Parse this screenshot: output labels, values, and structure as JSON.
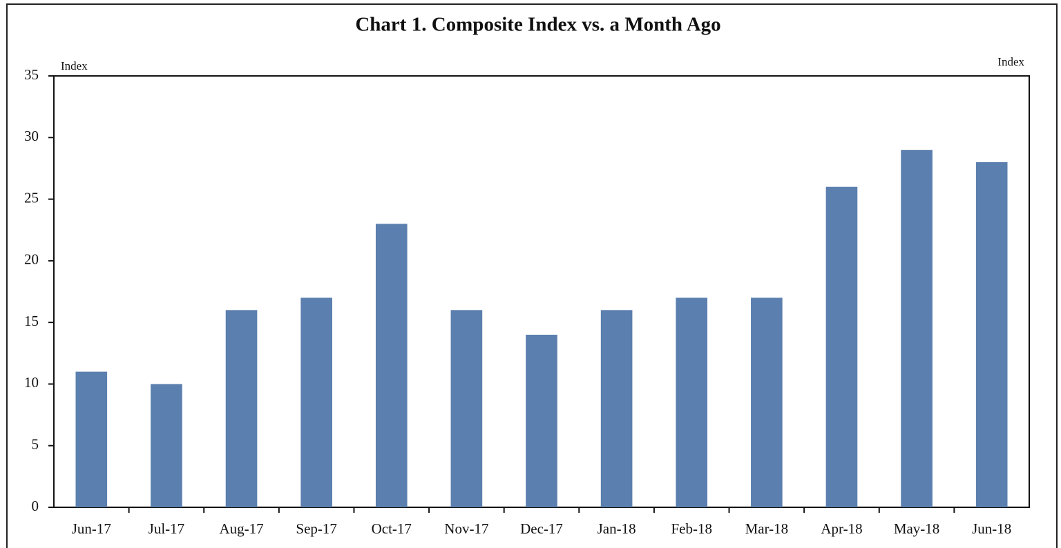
{
  "chart_data": {
    "type": "bar",
    "title": "Chart 1. Composite Index vs. a Month Ago",
    "y_axis_label": "Index",
    "y2_axis_label": "Index",
    "categories": [
      "Jun-17",
      "Jul-17",
      "Aug-17",
      "Sep-17",
      "Oct-17",
      "Nov-17",
      "Dec-17",
      "Jan-18",
      "Feb-18",
      "Mar-18",
      "Apr-18",
      "May-18",
      "Jun-18"
    ],
    "values": [
      11,
      10,
      16,
      17,
      23,
      16,
      14,
      16,
      17,
      17,
      26,
      29,
      28
    ],
    "color": "#5b7fae",
    "ylim": [
      0,
      35
    ],
    "yticks": [
      0,
      5,
      10,
      15,
      20,
      25,
      30,
      35
    ],
    "grid": false
  }
}
